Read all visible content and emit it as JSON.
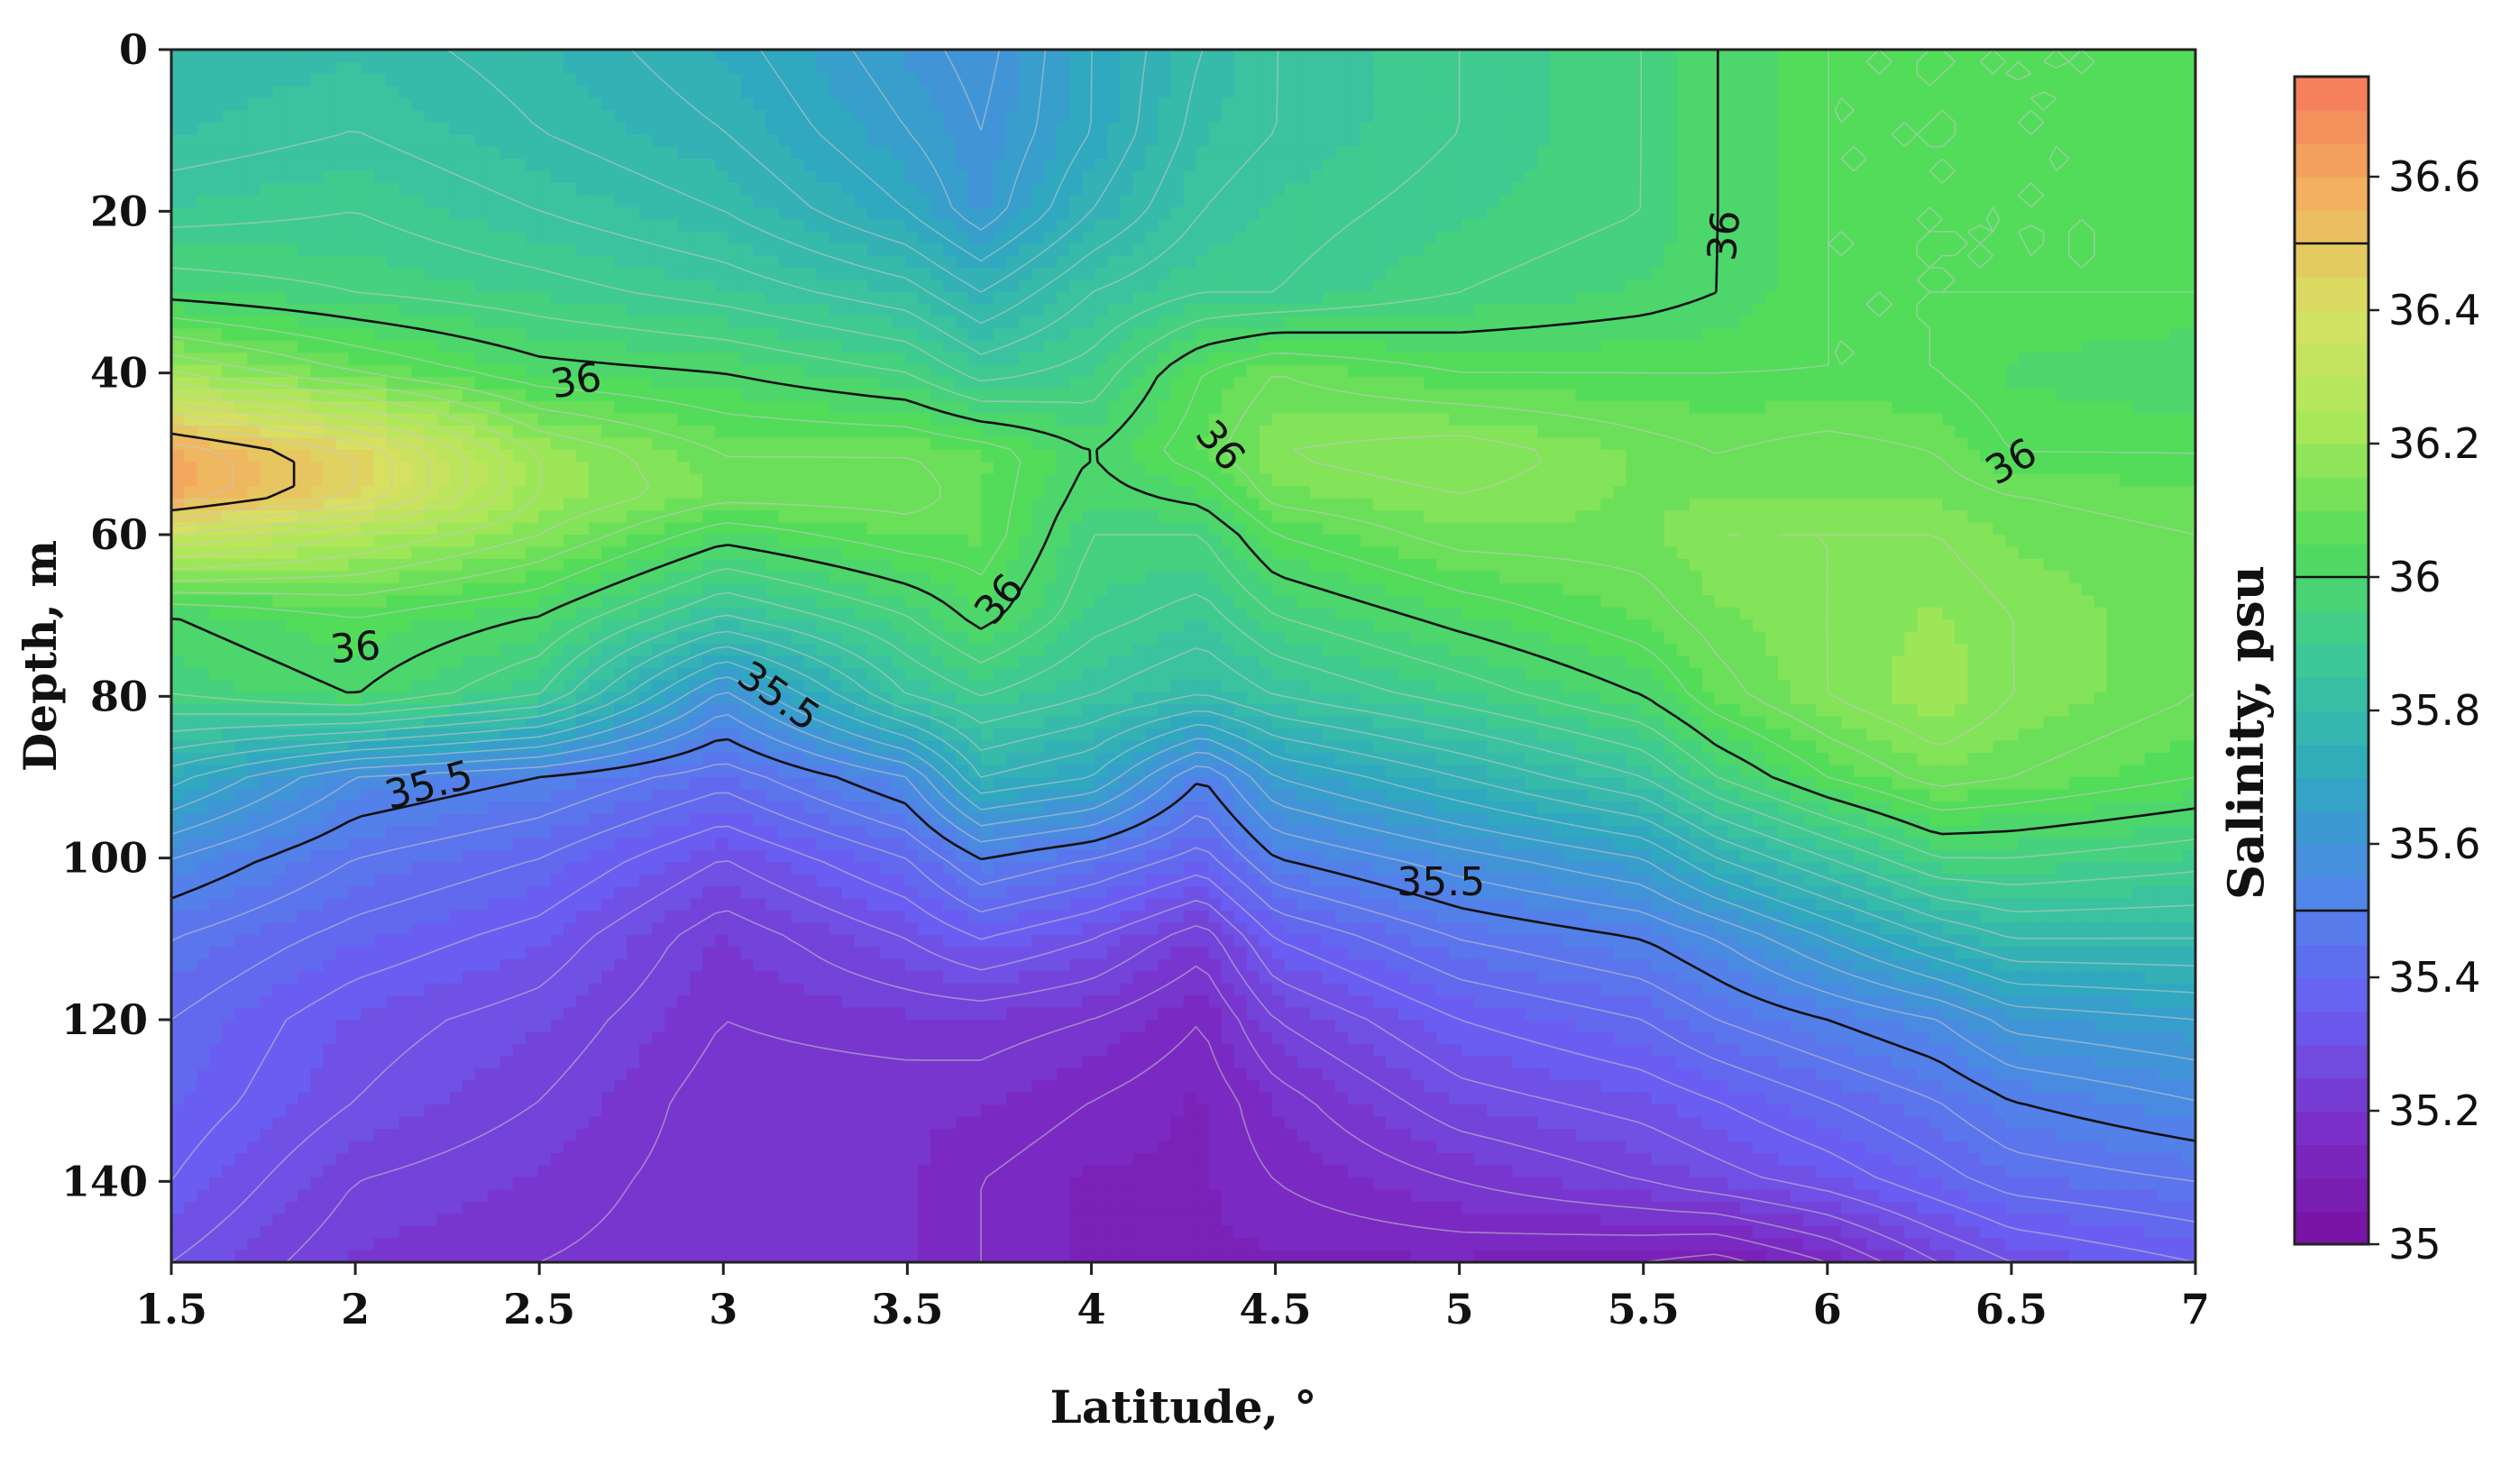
{
  "chart_data": {
    "type": "heatmap",
    "subtype": "filled-contour",
    "xlabel": "Latitude, °",
    "ylabel": "Depth, m",
    "xlim": [
      1.5,
      7
    ],
    "ylim": [
      0,
      150
    ],
    "y_inverted": true,
    "x_ticks": [
      "1.5",
      "2",
      "2.5",
      "3",
      "3.5",
      "4",
      "4.5",
      "5",
      "5.5",
      "6",
      "6.5",
      "7"
    ],
    "y_ticks": [
      "0",
      "20",
      "40",
      "60",
      "80",
      "100",
      "120",
      "140"
    ],
    "colorbar": {
      "title": "Salinity, psu",
      "range": [
        35,
        36.75
      ],
      "ticks": [
        "35",
        "35.2",
        "35.4",
        "35.6",
        "35.8",
        "36",
        "36.2",
        "36.4",
        "36.6"
      ],
      "major_lines": [
        35.5,
        36,
        36.5
      ],
      "colors": [
        "#7a0fa0",
        "#7a2fc8",
        "#6a5ef2",
        "#4f86e8",
        "#2fa8c0",
        "#3cc898",
        "#52dc5a",
        "#a8e858",
        "#d8e062",
        "#f2b060",
        "#f67858"
      ]
    },
    "contour_labels": [
      "36",
      "36",
      "36",
      "36",
      "36",
      "36",
      "35.5",
      "35.5",
      "35.5"
    ],
    "x": [
      1.5,
      2,
      2.5,
      3,
      3.5,
      3.7,
      4,
      4.3,
      4.5,
      5,
      5.5,
      5.7,
      6,
      6.3,
      6.5,
      7
    ],
    "y": [
      0,
      10,
      20,
      30,
      40,
      50,
      55,
      60,
      70,
      80,
      90,
      100,
      110,
      120,
      130,
      140,
      150
    ],
    "z": [
      [
        35.8,
        35.82,
        35.78,
        35.72,
        35.62,
        35.58,
        35.7,
        35.8,
        35.85,
        35.9,
        35.95,
        36.0,
        36.05,
        36.05,
        36.05,
        36.05
      ],
      [
        35.82,
        35.85,
        35.8,
        35.75,
        35.65,
        35.6,
        35.7,
        35.82,
        35.85,
        35.9,
        35.95,
        36.0,
        36.05,
        36.05,
        36.05,
        36.05
      ],
      [
        35.88,
        35.9,
        35.85,
        35.8,
        35.7,
        35.62,
        35.75,
        35.85,
        35.88,
        35.92,
        35.95,
        36.0,
        36.05,
        36.05,
        36.05,
        36.05
      ],
      [
        35.98,
        35.95,
        35.92,
        35.88,
        35.82,
        35.75,
        35.85,
        35.9,
        35.9,
        35.95,
        35.98,
        36.0,
        36.05,
        36.05,
        36.05,
        36.05
      ],
      [
        36.2,
        36.1,
        36.02,
        36.0,
        35.95,
        35.88,
        35.92,
        36.05,
        36.1,
        36.05,
        36.05,
        36.05,
        36.05,
        36.05,
        36.02,
        36.0
      ],
      [
        36.6,
        36.45,
        36.2,
        36.1,
        36.1,
        36.08,
        36.0,
        36.08,
        36.15,
        36.18,
        36.12,
        36.1,
        36.12,
        36.1,
        36.05,
        36.05
      ],
      [
        36.6,
        36.45,
        36.2,
        36.12,
        36.12,
        36.08,
        35.98,
        36.02,
        36.12,
        36.15,
        36.12,
        36.12,
        36.12,
        36.12,
        36.1,
        36.08
      ],
      [
        36.35,
        36.25,
        36.15,
        36.02,
        36.08,
        36.08,
        35.95,
        35.95,
        36.05,
        36.12,
        36.12,
        36.15,
        36.15,
        36.15,
        36.12,
        36.1
      ],
      [
        36.0,
        36.05,
        36.0,
        35.85,
        35.95,
        36.02,
        35.92,
        35.88,
        35.95,
        36.02,
        36.08,
        36.12,
        36.15,
        36.18,
        36.15,
        36.1
      ],
      [
        35.95,
        36.0,
        35.9,
        35.58,
        35.85,
        35.9,
        35.85,
        35.8,
        35.85,
        35.92,
        36.0,
        36.08,
        36.15,
        36.2,
        36.15,
        36.1
      ],
      [
        35.72,
        35.55,
        35.5,
        35.42,
        35.55,
        35.75,
        35.7,
        35.5,
        35.65,
        35.75,
        35.85,
        35.95,
        36.05,
        36.12,
        36.1,
        36.05
      ],
      [
        35.55,
        35.45,
        35.4,
        35.3,
        35.4,
        35.5,
        35.45,
        35.38,
        35.5,
        35.58,
        35.65,
        35.75,
        35.85,
        35.95,
        35.95,
        35.92
      ],
      [
        35.45,
        35.38,
        35.33,
        35.22,
        35.3,
        35.35,
        35.3,
        35.22,
        35.35,
        35.45,
        35.5,
        35.55,
        35.65,
        35.75,
        35.8,
        35.8
      ],
      [
        35.4,
        35.32,
        35.28,
        35.2,
        35.22,
        35.22,
        35.2,
        35.15,
        35.25,
        35.35,
        35.4,
        35.45,
        35.5,
        35.55,
        35.62,
        35.65
      ],
      [
        35.38,
        35.3,
        35.25,
        35.18,
        35.18,
        35.18,
        35.15,
        35.12,
        35.18,
        35.28,
        35.32,
        35.35,
        35.4,
        35.45,
        35.5,
        35.55
      ],
      [
        35.35,
        35.25,
        35.22,
        35.18,
        35.18,
        35.15,
        35.12,
        35.12,
        35.15,
        35.2,
        35.25,
        35.28,
        35.32,
        35.38,
        35.42,
        35.45
      ],
      [
        35.3,
        35.22,
        35.2,
        35.18,
        35.18,
        35.15,
        35.12,
        35.12,
        35.12,
        35.12,
        35.1,
        35.08,
        35.15,
        35.25,
        35.3,
        35.35
      ]
    ]
  }
}
